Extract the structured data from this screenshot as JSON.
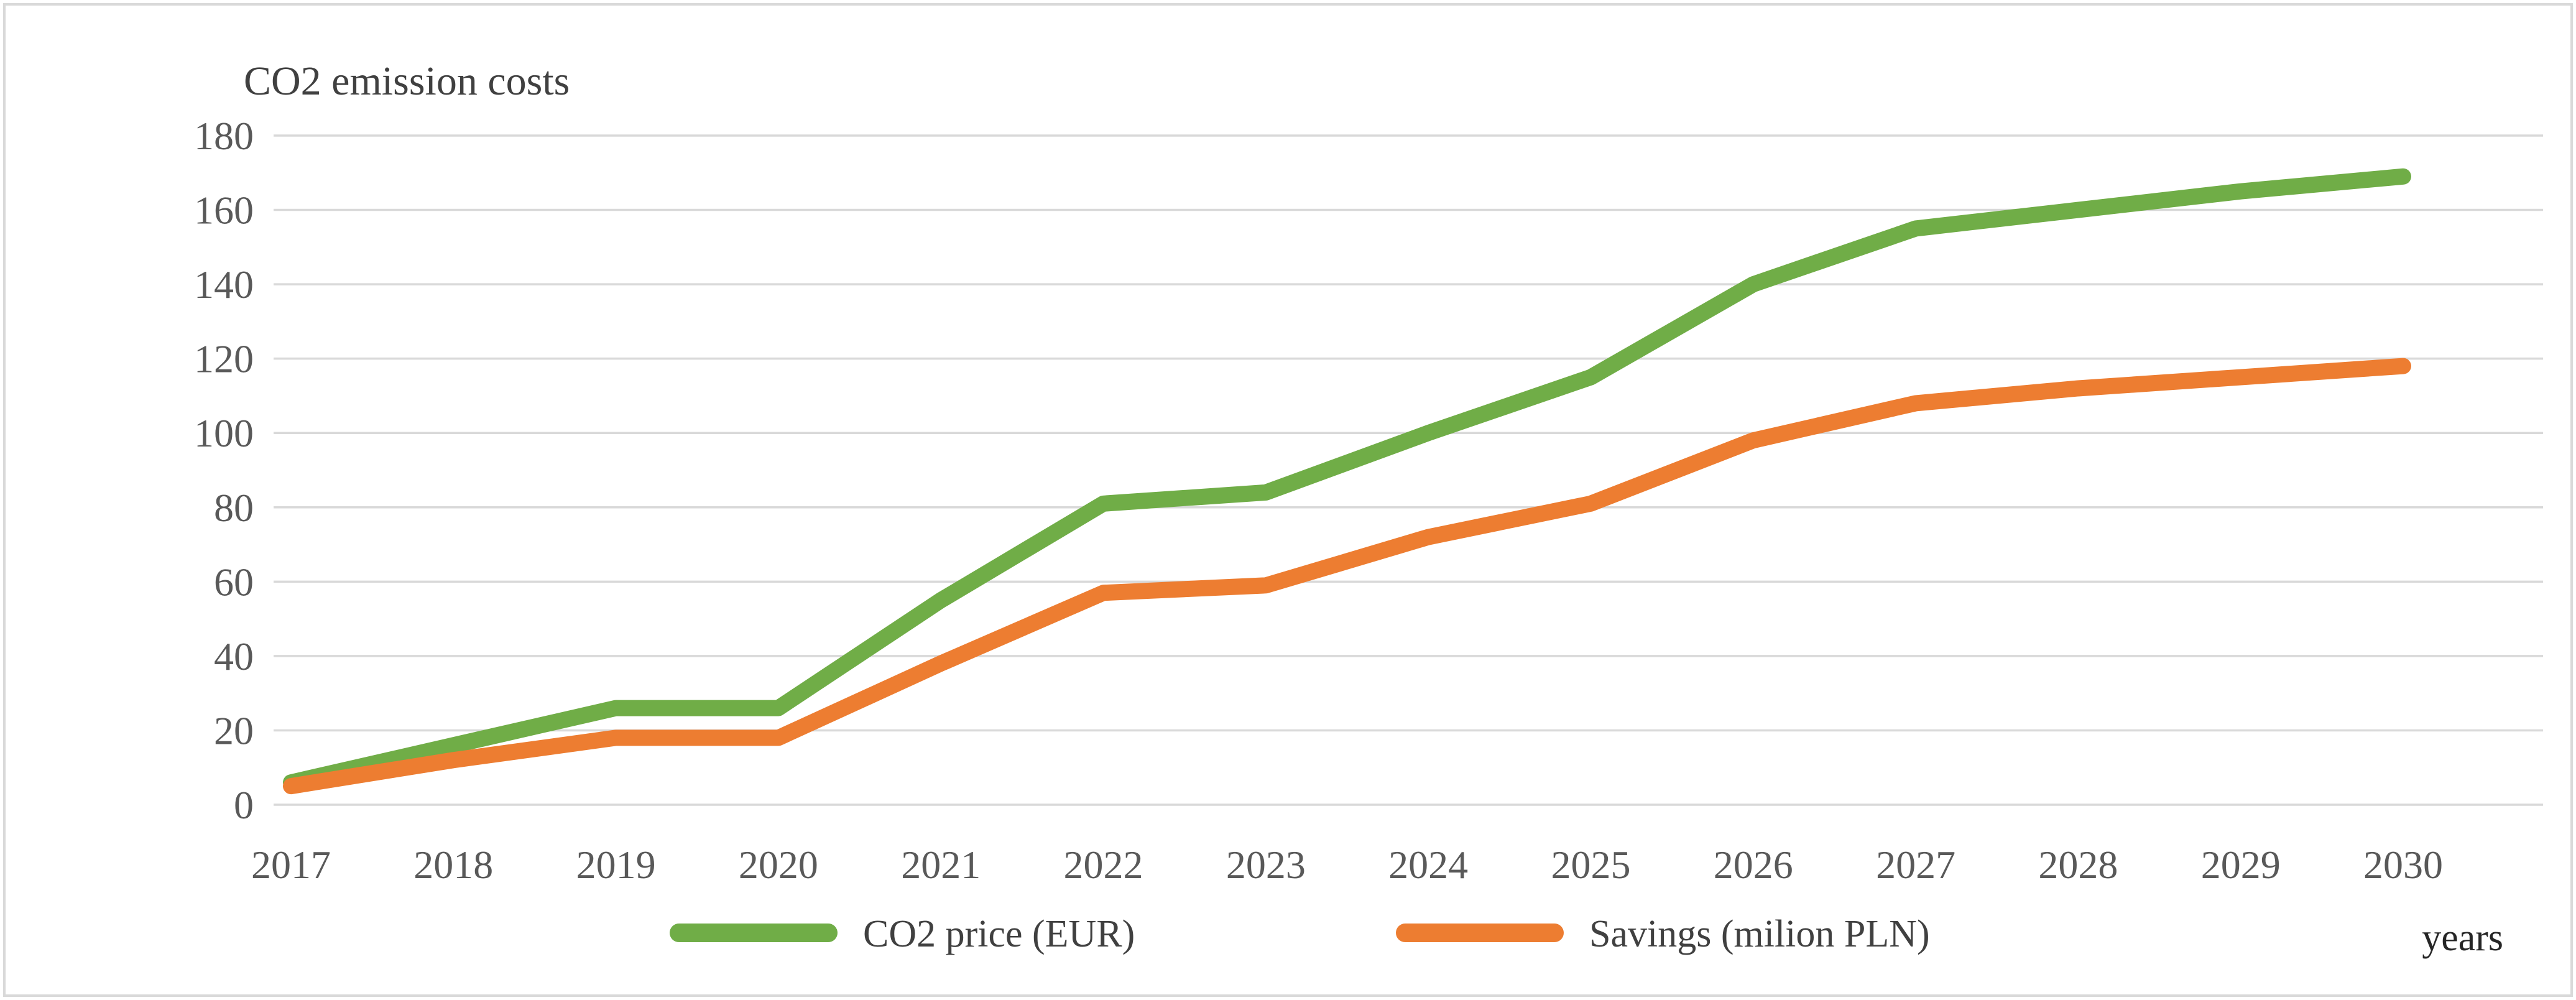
{
  "figure": {
    "title": "CO2 emission costs",
    "x_axis_unit": "years"
  },
  "chart_data": {
    "type": "line",
    "title": "CO2 emission costs",
    "xlabel": "years",
    "ylabel": "",
    "categories": [
      "2017",
      "2018",
      "2019",
      "2020",
      "2021",
      "2022",
      "2023",
      "2024",
      "2025",
      "2026",
      "2027",
      "2028",
      "2029",
      "2030"
    ],
    "series": [
      {
        "name": "CO2 price (EUR)",
        "color": "#70AD47",
        "values": [
          6,
          16,
          26,
          26,
          55,
          81,
          84,
          100,
          115,
          140,
          155,
          160,
          165,
          169
        ]
      },
      {
        "name": "Savings (milion PLN)",
        "color": "#ED7D31",
        "values": [
          5,
          12,
          18,
          18,
          38,
          57,
          59,
          72,
          81,
          98,
          108,
          112,
          115,
          118
        ]
      }
    ],
    "ylim": [
      0,
      180
    ],
    "ytick_step": 20,
    "yticks": [
      0,
      20,
      40,
      60,
      80,
      100,
      120,
      140,
      160,
      180
    ],
    "grid": "horizontal",
    "gridline_color": "#D9D9D9",
    "tick_label_color": "#595959",
    "title_color": "#404040",
    "legend_text_color": "#404040",
    "axis_unit_color": "#262626",
    "legend_position": "bottom-center",
    "background_color": "#FFFFFF"
  }
}
